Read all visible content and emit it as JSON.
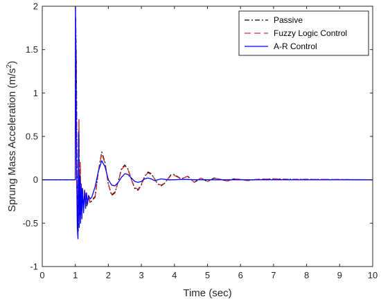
{
  "chart_data": {
    "type": "line",
    "title": "",
    "xlabel": "Time (sec)",
    "ylabel_main": "Sprung Mass Acceleration (m/s",
    "ylabel_sup": "2",
    "ylabel_close": ")",
    "xlim": [
      0,
      10
    ],
    "ylim": [
      -1,
      2
    ],
    "xticks": [
      0,
      1,
      2,
      3,
      4,
      5,
      6,
      7,
      8,
      9,
      10
    ],
    "yticks": [
      -1,
      -0.5,
      0,
      0.5,
      1,
      1.5,
      2
    ],
    "ytick_labels": [
      "-1",
      "-0.5",
      "0",
      "0.5",
      "1",
      "1.5",
      "2"
    ],
    "grid": false,
    "legend_position": "top-right",
    "series": [
      {
        "name": "Passive",
        "color": "#000000",
        "dash": "dashdot",
        "x": [
          0,
          1.0,
          1.01,
          1.03,
          1.05,
          1.07,
          1.09,
          1.11,
          1.13,
          1.15,
          1.17,
          1.2,
          1.25,
          1.3,
          1.35,
          1.4,
          1.45,
          1.5,
          1.6,
          1.7,
          1.8,
          1.9,
          2.0,
          2.1,
          2.2,
          2.3,
          2.4,
          2.5,
          2.6,
          2.7,
          2.8,
          2.9,
          3.0,
          3.1,
          3.2,
          3.3,
          3.4,
          3.5,
          3.6,
          3.7,
          3.8,
          3.9,
          4.0,
          4.2,
          4.4,
          4.6,
          4.8,
          5.0,
          5.2,
          5.4,
          5.6,
          5.8,
          6.0,
          6.2,
          6.5,
          7.0,
          7.5,
          8.0,
          10.0
        ],
        "y": [
          0,
          0,
          1.88,
          1.4,
          0.3,
          -0.5,
          -0.6,
          0.68,
          -0.4,
          0.2,
          -0.3,
          -0.1,
          -0.28,
          -0.15,
          -0.3,
          -0.2,
          -0.27,
          -0.24,
          -0.2,
          0.1,
          0.32,
          0.2,
          -0.05,
          -0.18,
          -0.15,
          -0.02,
          0.13,
          0.17,
          0.12,
          0.0,
          -0.1,
          -0.12,
          -0.06,
          0.04,
          0.09,
          0.07,
          0.01,
          -0.05,
          -0.07,
          -0.04,
          0.01,
          0.06,
          0.06,
          0.01,
          0.04,
          -0.03,
          0.02,
          -0.02,
          0.02,
          0.005,
          -0.015,
          0.01,
          0.005,
          -0.01,
          0.005,
          0.01,
          0.005,
          0.005,
          0
        ]
      },
      {
        "name": "Fuzzy Logic Control",
        "color": "#d62728",
        "dash": "dash",
        "x": [
          0,
          1.0,
          1.01,
          1.03,
          1.05,
          1.07,
          1.09,
          1.11,
          1.13,
          1.15,
          1.17,
          1.2,
          1.25,
          1.3,
          1.35,
          1.4,
          1.45,
          1.5,
          1.6,
          1.7,
          1.8,
          1.9,
          2.0,
          2.1,
          2.2,
          2.3,
          2.4,
          2.5,
          2.6,
          2.7,
          2.8,
          2.9,
          3.0,
          3.1,
          3.2,
          3.3,
          3.4,
          3.5,
          3.6,
          3.7,
          3.8,
          3.9,
          4.0,
          4.2,
          4.4,
          4.6,
          4.8,
          5.0,
          5.2,
          5.4,
          5.6,
          5.8,
          6.0,
          6.2,
          6.5,
          7.0,
          7.5,
          8.0,
          10.0
        ],
        "y": [
          0,
          0,
          1.82,
          1.35,
          0.25,
          -0.48,
          -0.58,
          0.7,
          -0.38,
          0.2,
          -0.28,
          -0.1,
          -0.27,
          -0.15,
          -0.28,
          -0.2,
          -0.26,
          -0.23,
          -0.19,
          0.1,
          0.3,
          0.19,
          -0.05,
          -0.17,
          -0.14,
          -0.02,
          0.12,
          0.16,
          0.11,
          0.0,
          -0.09,
          -0.11,
          -0.05,
          0.04,
          0.08,
          0.06,
          0.01,
          -0.05,
          -0.06,
          -0.04,
          0.01,
          0.05,
          0.05,
          0.01,
          0.04,
          -0.03,
          0.02,
          -0.02,
          0.02,
          0.005,
          -0.015,
          0.01,
          0.005,
          -0.01,
          0.005,
          0.01,
          0.005,
          0.005,
          0
        ]
      },
      {
        "name": "A-R Control",
        "color": "#0000ff",
        "dash": "solid",
        "x": [
          0,
          1.0,
          1.005,
          1.02,
          1.04,
          1.06,
          1.08,
          1.1,
          1.12,
          1.14,
          1.16,
          1.18,
          1.2,
          1.22,
          1.25,
          1.28,
          1.31,
          1.34,
          1.37,
          1.4,
          1.45,
          1.5,
          1.6,
          1.7,
          1.8,
          1.9,
          2.0,
          2.1,
          2.2,
          2.3,
          2.4,
          2.5,
          2.6,
          2.7,
          2.8,
          2.9,
          3.0,
          3.1,
          3.2,
          3.3,
          3.4,
          3.5,
          3.6,
          3.8,
          4.0,
          4.3,
          4.6,
          5.0,
          5.5,
          6.0,
          10.0
        ],
        "y": [
          0,
          0,
          2.05,
          1.3,
          0.1,
          -0.55,
          -0.68,
          0.55,
          -0.55,
          0.05,
          -0.5,
          -0.05,
          -0.45,
          -0.1,
          -0.38,
          -0.12,
          -0.33,
          -0.15,
          -0.28,
          -0.18,
          -0.22,
          -0.2,
          -0.08,
          0.1,
          0.22,
          0.15,
          0.0,
          -0.06,
          -0.07,
          -0.03,
          0.03,
          0.07,
          0.06,
          0.02,
          -0.02,
          -0.03,
          -0.02,
          0.01,
          0.02,
          0.01,
          -0.01,
          0.0,
          0.01,
          0.0,
          0.0,
          0.005,
          0.0,
          0.0,
          0.0,
          0.0,
          0
        ]
      }
    ]
  }
}
